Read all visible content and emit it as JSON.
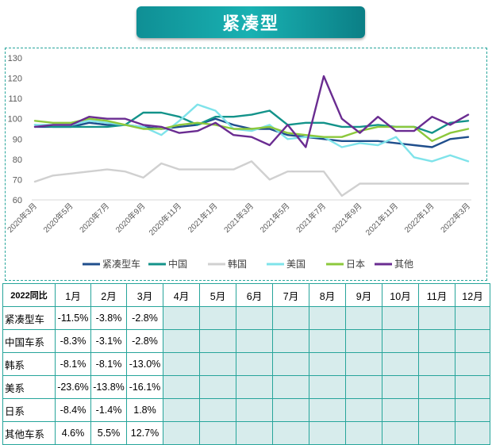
{
  "title": "紧凑型",
  "chart_data": {
    "type": "line",
    "title": "紧凑型",
    "ylim": [
      60,
      130
    ],
    "yticks": [
      60,
      70,
      80,
      90,
      100,
      110,
      120,
      130
    ],
    "x": [
      "2020年3月",
      "2020年4月",
      "2020年5月",
      "2020年6月",
      "2020年7月",
      "2020年8月",
      "2020年9月",
      "2020年10月",
      "2020年11月",
      "2020年12月",
      "2021年1月",
      "2021年2月",
      "2021年3月",
      "2021年4月",
      "2021年5月",
      "2021年6月",
      "2021年7月",
      "2021年8月",
      "2021年9月",
      "2021年10月",
      "2021年11月",
      "2021年12月",
      "2022年1月",
      "2022年2月",
      "2022年3月"
    ],
    "xtick_labels": [
      "2020年3月",
      "2020年5月",
      "2020年7月",
      "2020年9月",
      "2020年11月",
      "2021年1月",
      "2021年3月",
      "2021年5月",
      "2021年7月",
      "2021年9月",
      "2021年11月",
      "2022年1月",
      "2022年3月"
    ],
    "legend_position": "bottom",
    "series": [
      {
        "name": "紧凑型车",
        "color": "#1f4e8c",
        "values": [
          96,
          96,
          96,
          98,
          97,
          97,
          96,
          95,
          96,
          97,
          100,
          97,
          95,
          95,
          92,
          91,
          90,
          89,
          89,
          89,
          88,
          87,
          86,
          90,
          91
        ]
      },
      {
        "name": "中国",
        "color": "#13938a",
        "values": [
          97,
          96,
          96,
          96,
          96,
          97,
          103,
          103,
          101,
          97,
          101,
          101,
          102,
          104,
          97,
          98,
          98,
          96,
          96,
          97,
          96,
          96,
          93,
          98,
          99
        ]
      },
      {
        "name": "韩国",
        "color": "#d0d0d0",
        "values": [
          69,
          72,
          73,
          74,
          75,
          74,
          71,
          78,
          75,
          75,
          75,
          75,
          79,
          70,
          74,
          74,
          74,
          62,
          68,
          68,
          68,
          68,
          68,
          68,
          68
        ]
      },
      {
        "name": "美国",
        "color": "#7fe3ea",
        "values": [
          97,
          97,
          97,
          99,
          98,
          97,
          96,
          92,
          99,
          107,
          104,
          95,
          94,
          97,
          90,
          91,
          91,
          86,
          88,
          87,
          91,
          81,
          79,
          82,
          79
        ]
      },
      {
        "name": "日本",
        "color": "#8cc83c",
        "values": [
          99,
          98,
          98,
          100,
          99,
          97,
          95,
          95,
          97,
          98,
          97,
          95,
          95,
          96,
          93,
          92,
          91,
          91,
          94,
          96,
          96,
          96,
          89,
          93,
          95
        ]
      },
      {
        "name": "其他",
        "color": "#6a2c91",
        "values": [
          96,
          97,
          97,
          101,
          100,
          100,
          97,
          96,
          93,
          94,
          98,
          92,
          91,
          87,
          97,
          86,
          121,
          100,
          93,
          101,
          94,
          94,
          101,
          97,
          102
        ]
      }
    ]
  },
  "table": {
    "corner": "2022同比",
    "months": [
      "1月",
      "2月",
      "3月",
      "4月",
      "5月",
      "6月",
      "7月",
      "8月",
      "9月",
      "10月",
      "11月",
      "12月"
    ],
    "rows": [
      {
        "label": "紧凑型车",
        "values": [
          "-11.5%",
          "-3.8%",
          "-2.8%"
        ]
      },
      {
        "label": "中国车系",
        "values": [
          "-8.3%",
          "-3.1%",
          "-2.8%"
        ]
      },
      {
        "label": "韩系",
        "values": [
          "-8.1%",
          "-8.1%",
          "-13.0%"
        ]
      },
      {
        "label": "美系",
        "values": [
          "-23.6%",
          "-13.8%",
          "-16.1%"
        ]
      },
      {
        "label": "日系",
        "values": [
          "-8.4%",
          "-1.4%",
          "1.8%"
        ]
      },
      {
        "label": "其他车系",
        "values": [
          "4.6%",
          "5.5%",
          "12.7%"
        ]
      }
    ]
  }
}
